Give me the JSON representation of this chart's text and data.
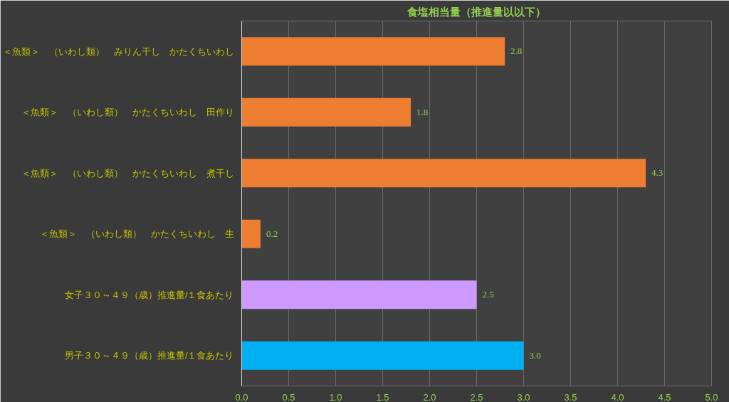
{
  "chart_data": {
    "type": "bar",
    "orientation": "horizontal",
    "title": "食塩相当量（推進量以以下）",
    "categories": [
      "＜魚類＞　（いわし類）　みりん干し　かたくちいわし",
      "＜魚類＞　（いわし類）　かたくちいわし　田作り",
      "＜魚類＞　（いわし類）　かたくちいわし　煮干し",
      "＜魚類＞　（いわし類）　かたくちいわし　生",
      "女子３０～４９（歳）推進量/１食あたり",
      "男子３０～４９（歳）推進量/１食あたり"
    ],
    "values": [
      2.8,
      1.8,
      4.3,
      0.2,
      2.5,
      3.0
    ],
    "value_labels": [
      "2.8",
      "1.8",
      "4.3",
      "0.2",
      "2.5",
      "3.0"
    ],
    "colors": [
      "#ed7d31",
      "#ed7d31",
      "#ed7d31",
      "#ed7d31",
      "#cc99ff",
      "#00b0f0"
    ],
    "xlim": [
      0,
      5
    ],
    "xticks": [
      {
        "value": 0,
        "label": "0.0"
      },
      {
        "value": 0.5,
        "label": "0.5"
      },
      {
        "value": 1,
        "label": "1.0"
      },
      {
        "value": 1.5,
        "label": "1.5"
      },
      {
        "value": 2,
        "label": "2.0"
      },
      {
        "value": 2.5,
        "label": "2.5"
      },
      {
        "value": 3,
        "label": "3.0"
      },
      {
        "value": 3.5,
        "label": "3.5"
      },
      {
        "value": 4,
        "label": "4.0"
      },
      {
        "value": 4.5,
        "label": "4.5"
      },
      {
        "value": 5,
        "label": "5.0"
      }
    ],
    "grid": "x"
  }
}
